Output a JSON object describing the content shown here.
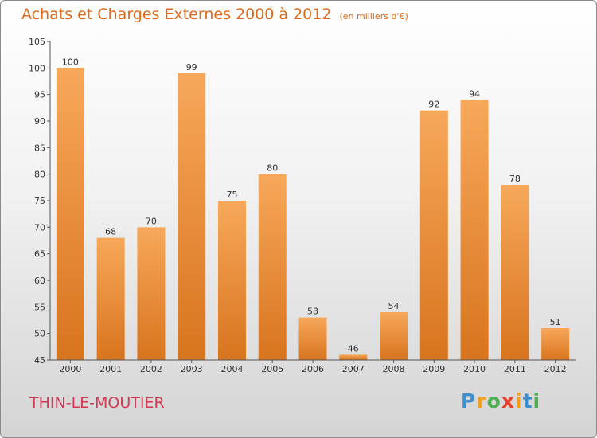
{
  "title": "Achats et Charges Externes 2000 à 2012",
  "unit_note": "(en milliers d'€)",
  "commune": "THIN-LE-MOUTIER",
  "logo_text": "Proxiti",
  "colors": {
    "bar_light": "#f7a85a",
    "bar_dark": "#d8741e",
    "title": "#e06a1a",
    "commune": "#d23a54"
  },
  "chart_data": {
    "type": "bar",
    "title": "Achats et Charges Externes 2000 à 2012",
    "subtitle": "(en milliers d'€)",
    "categories": [
      "2000",
      "2001",
      "2002",
      "2003",
      "2004",
      "2005",
      "2006",
      "2007",
      "2008",
      "2009",
      "2010",
      "2011",
      "2012"
    ],
    "values": [
      100,
      68,
      70,
      99,
      75,
      80,
      53,
      46,
      54,
      92,
      94,
      78,
      51
    ],
    "ylim": [
      45,
      105
    ],
    "yticks": [
      45,
      50,
      55,
      60,
      65,
      70,
      75,
      80,
      85,
      90,
      95,
      100,
      105
    ],
    "grid": false,
    "xlabel": "",
    "ylabel": ""
  }
}
